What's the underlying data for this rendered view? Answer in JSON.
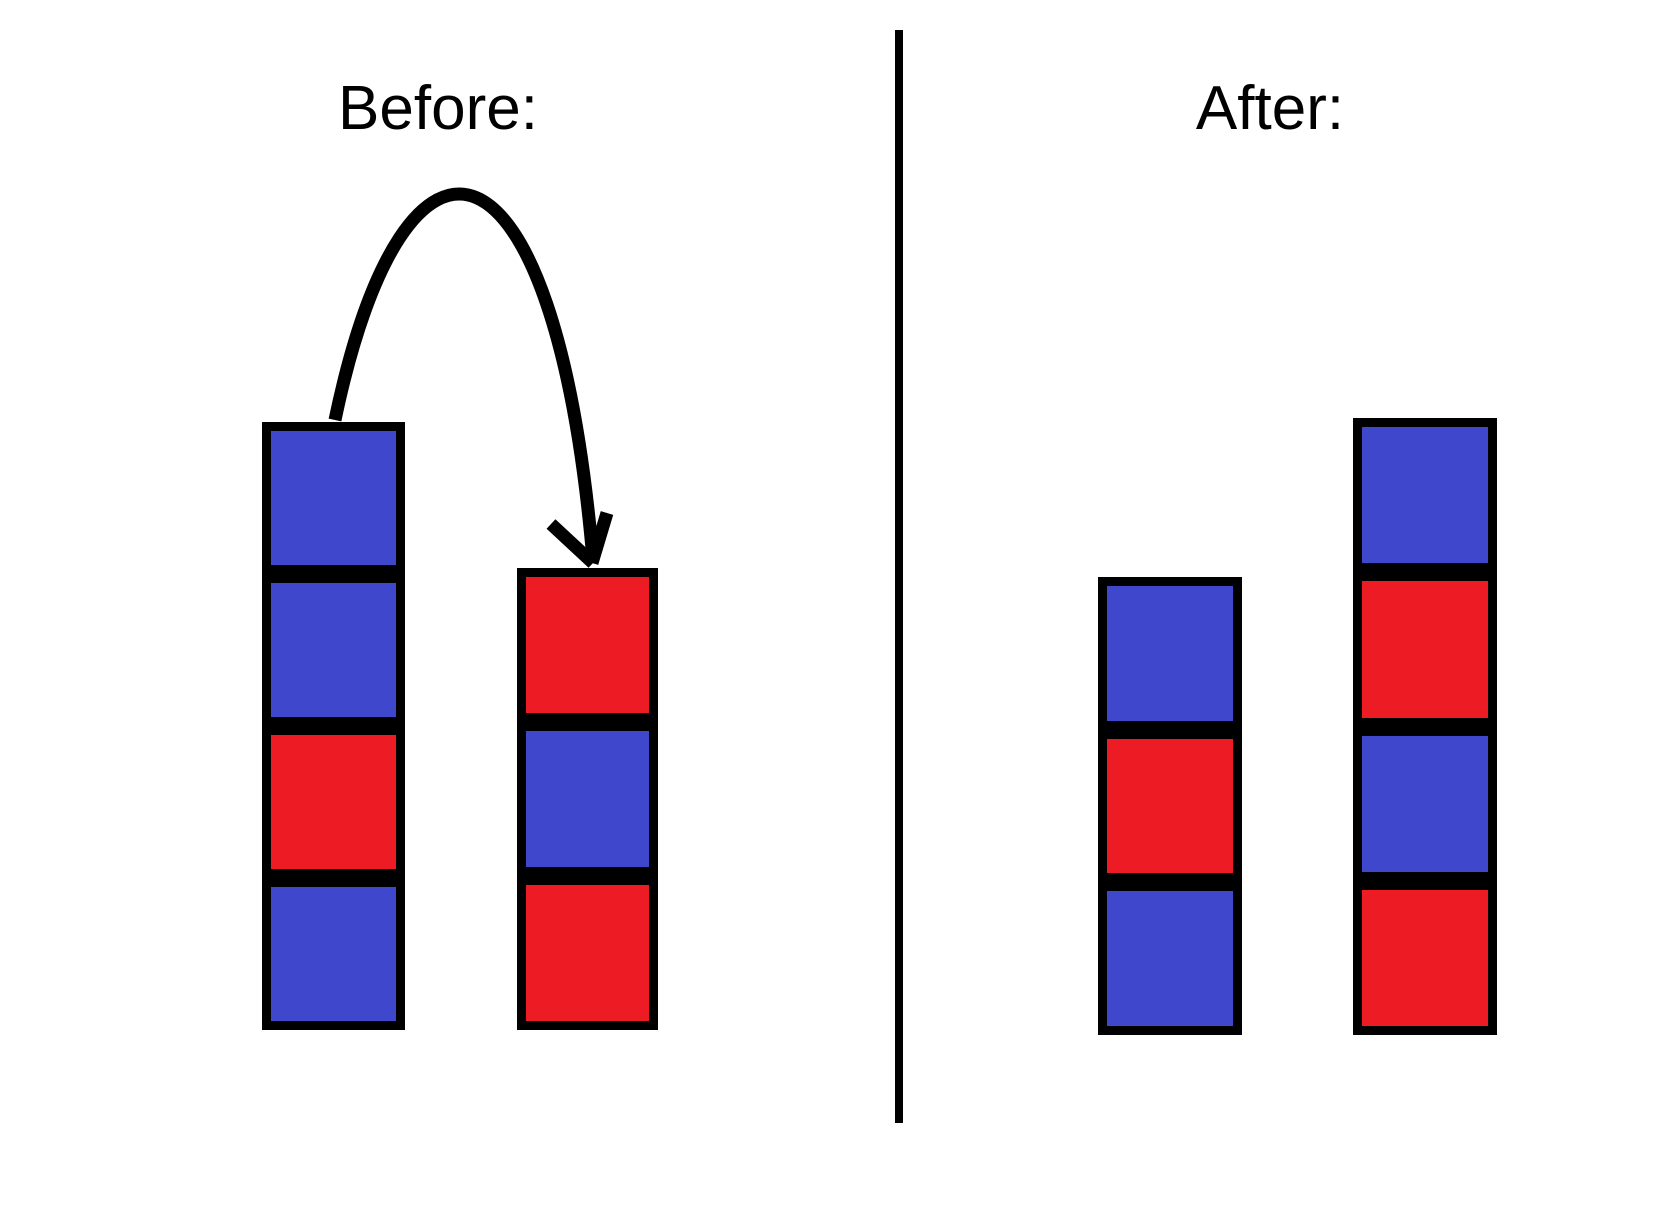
{
  "canvas": {
    "background": "#FFFFFF"
  },
  "colors": {
    "blue": "#3F48CC",
    "red": "#ED1C24",
    "outline": "#000000"
  },
  "before": {
    "title": "Before:",
    "left_stack": [
      "blue",
      "blue",
      "red",
      "blue"
    ],
    "right_stack": [
      "red",
      "blue",
      "red"
    ]
  },
  "after": {
    "title": "After:",
    "left_stack": [
      "blue",
      "red",
      "blue"
    ],
    "right_stack": [
      "blue",
      "red",
      "blue",
      "red"
    ]
  },
  "arrow": {
    "from": "before-left-stack-top-block",
    "to": "before-right-stack-top"
  }
}
